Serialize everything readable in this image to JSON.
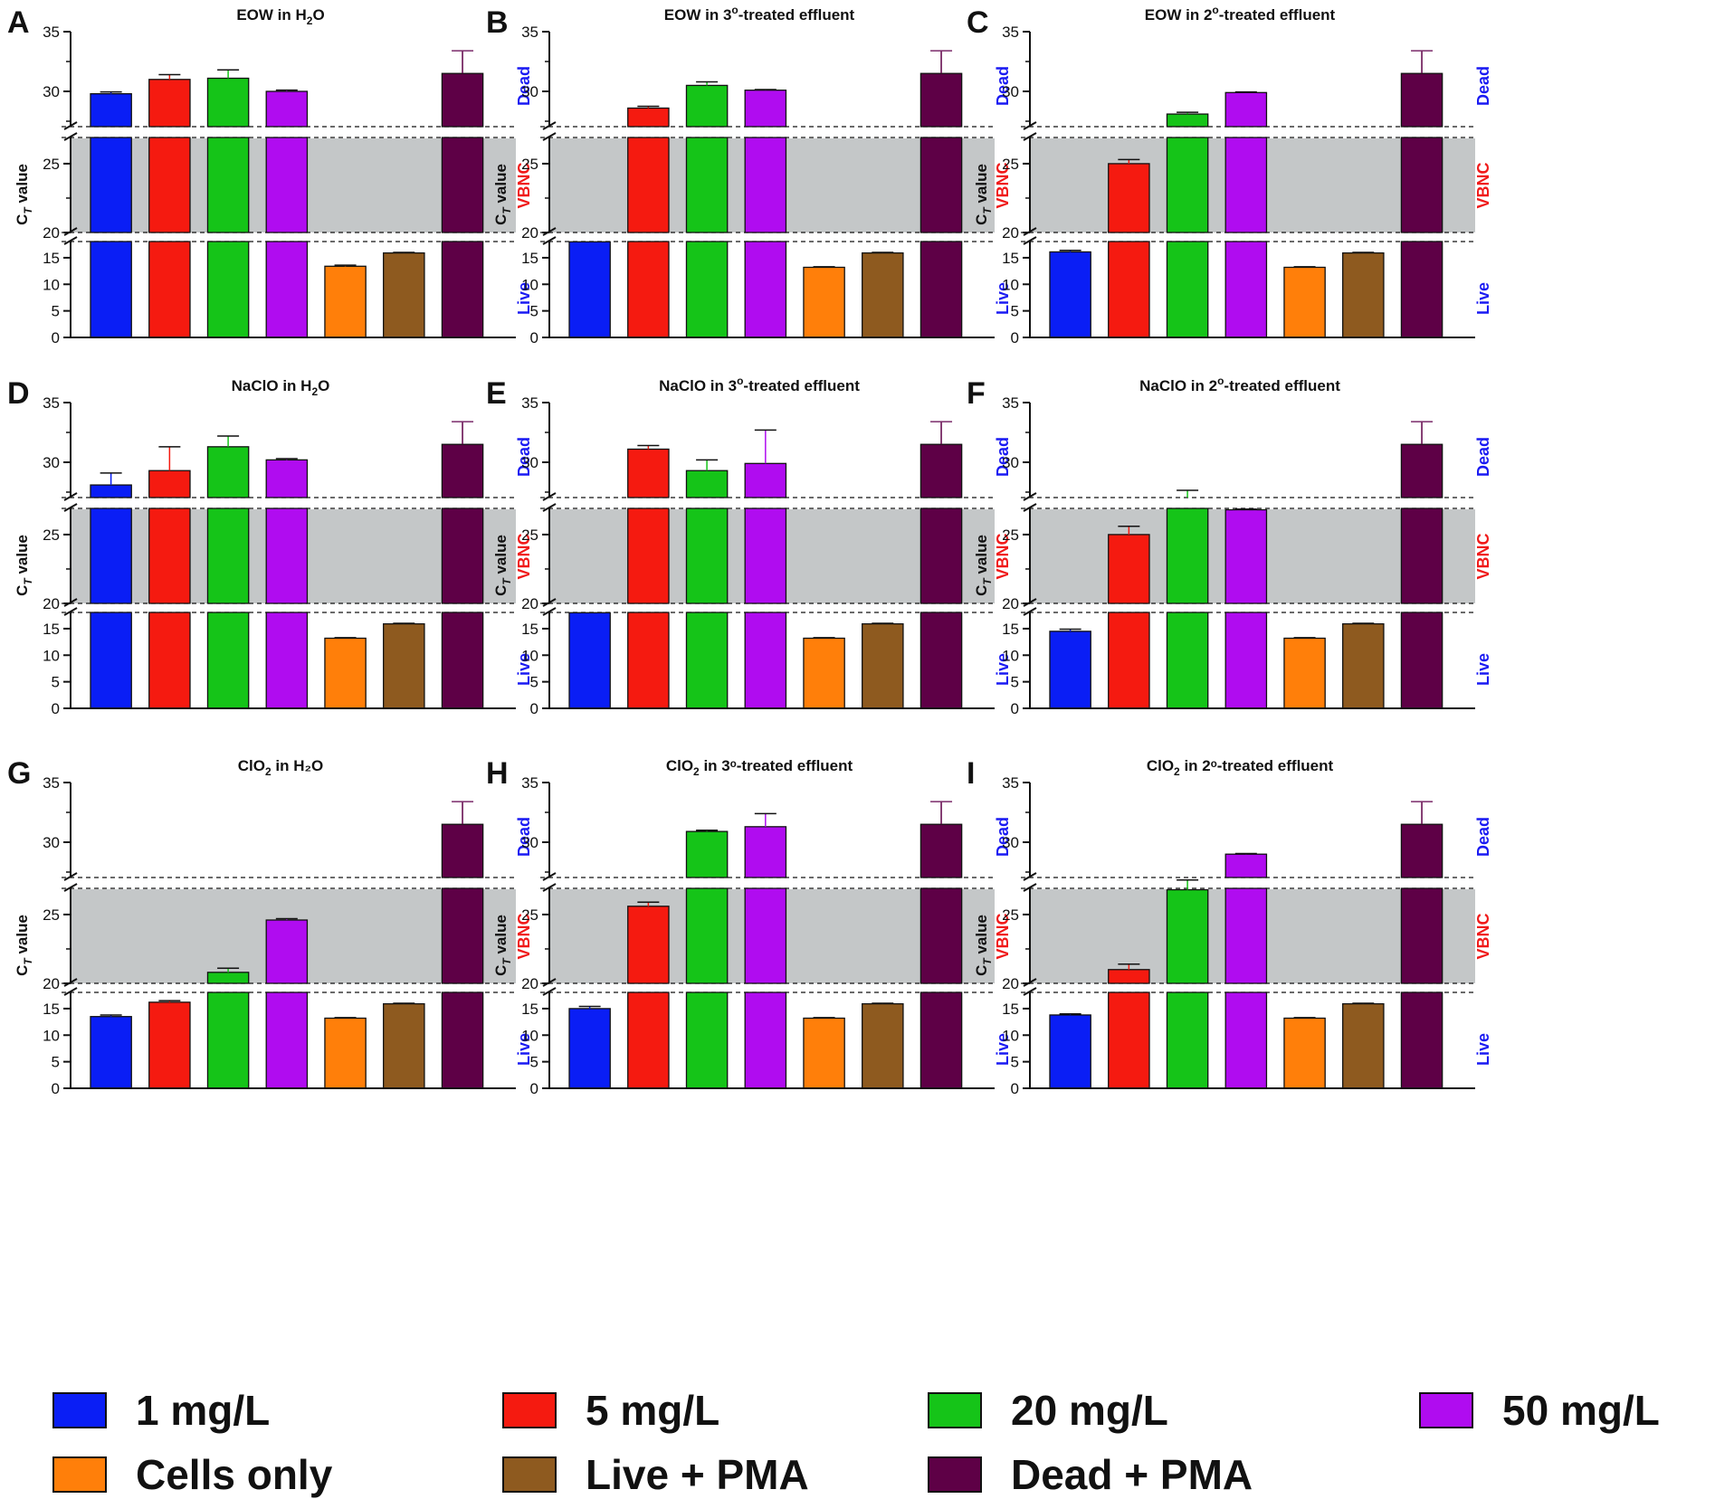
{
  "colors": {
    "1 mg/L": "#0a1ef5",
    "5 mg/L": "#f51a10",
    "20 mg/L": "#15c418",
    "50 mg/L": "#b00cf0",
    "Cells only": "#ff7f0a",
    "Live + PMA": "#8e5a1f",
    "Dead + PMA": "#5e0046",
    "band": "#c4c7c8",
    "dead_label": "#1a1af2",
    "vbnc_label": "#f01a1a",
    "live_label": "#1a1af2"
  },
  "legend": {
    "items": [
      {
        "label": "1 mg/L",
        "color": "#0a1ef5"
      },
      {
        "label": "5 mg/L",
        "color": "#f51a10"
      },
      {
        "label": "20 mg/L",
        "color": "#15c418"
      },
      {
        "label": "50 mg/L",
        "color": "#b00cf0"
      },
      {
        "label": "Cells only",
        "color": "#ff7f0a"
      },
      {
        "label": "Live + PMA",
        "color": "#8e5a1f"
      },
      {
        "label": "Dead + PMA",
        "color": "#5e0046"
      }
    ]
  },
  "chart_data": [
    {
      "panel": "A",
      "type": "bar",
      "title_prefix": "EOW in H",
      "title_sub": "2",
      "title_sup": "",
      "title_suffix": "O",
      "ylabel": "CT value",
      "ylim": [
        0,
        35
      ],
      "yticks": [
        0,
        5,
        10,
        15,
        20,
        25,
        30,
        35
      ],
      "zones": {
        "dead": "Dead",
        "vbnc": "VBNC",
        "live": "Live"
      },
      "categories": [
        "1 mg/L",
        "5 mg/L",
        "20 mg/L",
        "50 mg/L",
        "Cells only",
        "Live + PMA",
        "Dead + PMA"
      ],
      "values": [
        29.8,
        31.0,
        31.1,
        30.0,
        13.4,
        15.9,
        31.5
      ],
      "errors": [
        0.15,
        0.4,
        0.7,
        0.1,
        0.2,
        0.1,
        1.9
      ]
    },
    {
      "panel": "B",
      "type": "bar",
      "title_prefix": "EOW in 3",
      "title_sub": "",
      "title_sup": "o",
      "title_suffix": "-treated effluent",
      "ylabel": "CT value",
      "ylim": [
        0,
        35
      ],
      "yticks": [
        0,
        5,
        10,
        15,
        20,
        25,
        30,
        35
      ],
      "zones": {
        "dead": "Dead",
        "vbnc": "VBNC",
        "live": "Live"
      },
      "categories": [
        "1 mg/L",
        "5 mg/L",
        "20 mg/L",
        "50 mg/L",
        "Cells only",
        "Live + PMA",
        "Dead + PMA"
      ],
      "values": [
        18.0,
        28.6,
        30.5,
        30.1,
        13.2,
        15.9,
        31.5
      ],
      "errors": [
        0,
        0.15,
        0.3,
        0.05,
        0.1,
        0.1,
        1.9
      ]
    },
    {
      "panel": "C",
      "type": "bar",
      "title_prefix": "EOW in 2",
      "title_sub": "",
      "title_sup": "o",
      "title_suffix": "-treated effluent",
      "ylabel": "CT value",
      "ylim": [
        0,
        35
      ],
      "yticks": [
        0,
        5,
        10,
        15,
        20,
        25,
        30,
        35
      ],
      "zones": {
        "dead": "Dead",
        "vbnc": "VBNC",
        "live": "Live"
      },
      "categories": [
        "1 mg/L",
        "5 mg/L",
        "20 mg/L",
        "50 mg/L",
        "Cells only",
        "Live + PMA",
        "Dead + PMA"
      ],
      "values": [
        16.1,
        25.0,
        28.1,
        29.9,
        13.2,
        15.9,
        31.5
      ],
      "errors": [
        0.3,
        0.3,
        0.15,
        0.05,
        0.1,
        0.1,
        1.9
      ]
    },
    {
      "panel": "D",
      "type": "bar",
      "title_prefix": "NaClO in H",
      "title_sub": "2",
      "title_sup": "",
      "title_suffix": "O",
      "ylabel": "CT value",
      "ylim": [
        0,
        35
      ],
      "yticks": [
        0,
        5,
        10,
        15,
        20,
        25,
        30,
        35
      ],
      "zones": {
        "dead": "Dead",
        "vbnc": "VBNC",
        "live": "Live"
      },
      "categories": [
        "1 mg/L",
        "5 mg/L",
        "20 mg/L",
        "50 mg/L",
        "Cells only",
        "Live + PMA",
        "Dead + PMA"
      ],
      "values": [
        28.1,
        29.3,
        31.3,
        30.2,
        13.2,
        15.9,
        31.5
      ],
      "errors": [
        1.0,
        2.0,
        0.9,
        0.1,
        0.1,
        0.1,
        1.9
      ]
    },
    {
      "panel": "E",
      "type": "bar",
      "title_prefix": "NaClO in 3",
      "title_sub": "",
      "title_sup": "o",
      "title_suffix": "-treated effluent",
      "ylabel": "CT value",
      "ylim": [
        0,
        35
      ],
      "yticks": [
        0,
        5,
        10,
        15,
        20,
        25,
        30,
        35
      ],
      "zones": {
        "dead": "Dead",
        "vbnc": "VBNC",
        "live": "Live"
      },
      "categories": [
        "1 mg/L",
        "5 mg/L",
        "20 mg/L",
        "50 mg/L",
        "Cells only",
        "Live + PMA",
        "Dead + PMA"
      ],
      "values": [
        18.0,
        31.1,
        29.3,
        29.9,
        13.2,
        15.9,
        31.5
      ],
      "errors": [
        0,
        0.3,
        0.9,
        2.8,
        0.1,
        0.1,
        1.9
      ]
    },
    {
      "panel": "F",
      "type": "bar",
      "title_prefix": "NaClO in 2",
      "title_sub": "",
      "title_sup": "o",
      "title_suffix": "-treated effluent",
      "ylabel": "CT value",
      "ylim": [
        0,
        35
      ],
      "yticks": [
        0,
        5,
        10,
        15,
        20,
        25,
        30,
        35
      ],
      "zones": {
        "dead": "Dead",
        "vbnc": "VBNC",
        "live": "Live"
      },
      "categories": [
        "1 mg/L",
        "5 mg/L",
        "20 mg/L",
        "50 mg/L",
        "Cells only",
        "Live + PMA",
        "Dead + PMA"
      ],
      "values": [
        14.5,
        25.0,
        27.5,
        26.8,
        13.2,
        15.9,
        31.5
      ],
      "errors": [
        0.4,
        0.6,
        0.15,
        0.05,
        0.1,
        0.1,
        1.9
      ]
    },
    {
      "panel": "G",
      "type": "bar",
      "title_prefix": "ClO",
      "title_sub": "2",
      "title_sup": "",
      "title_suffix": " in H₂O",
      "ylabel": "CT value",
      "ylim": [
        0,
        35
      ],
      "yticks": [
        0,
        5,
        10,
        15,
        20,
        25,
        30,
        35
      ],
      "zones": {
        "dead": "Dead",
        "vbnc": "VBNC",
        "live": "Live"
      },
      "categories": [
        "1 mg/L",
        "5 mg/L",
        "20 mg/L",
        "50 mg/L",
        "Cells only",
        "Live + PMA",
        "Dead + PMA"
      ],
      "values": [
        13.5,
        16.2,
        20.8,
        24.6,
        13.2,
        15.9,
        31.5
      ],
      "errors": [
        0.3,
        0.3,
        0.3,
        0.1,
        0.1,
        0.1,
        1.9
      ]
    },
    {
      "panel": "H",
      "type": "bar",
      "title_prefix": "ClO",
      "title_sub": "2",
      "title_sup": "",
      "title_suffix": " in 3ᵒ-treated effluent",
      "ylabel": "CT value",
      "ylim": [
        0,
        35
      ],
      "yticks": [
        0,
        5,
        10,
        15,
        20,
        25,
        30,
        35
      ],
      "zones": {
        "dead": "Dead",
        "vbnc": "VBNC",
        "live": "Live"
      },
      "categories": [
        "1 mg/L",
        "5 mg/L",
        "20 mg/L",
        "50 mg/L",
        "Cells only",
        "Live + PMA",
        "Dead + PMA"
      ],
      "values": [
        15.0,
        25.6,
        30.9,
        31.3,
        13.2,
        15.9,
        31.5
      ],
      "errors": [
        0.4,
        0.3,
        0.1,
        1.1,
        0.1,
        0.1,
        1.9
      ]
    },
    {
      "panel": "I",
      "type": "bar",
      "title_prefix": "ClO",
      "title_sub": "2",
      "title_sup": "",
      "title_suffix": " in 2ᵒ-treated effluent",
      "ylabel": "CT value",
      "ylim": [
        0,
        35
      ],
      "yticks": [
        0,
        5,
        10,
        15,
        20,
        25,
        30,
        35
      ],
      "zones": {
        "dead": "Dead",
        "vbnc": "VBNC",
        "live": "Live"
      },
      "categories": [
        "1 mg/L",
        "5 mg/L",
        "20 mg/L",
        "50 mg/L",
        "Cells only",
        "Live + PMA",
        "Dead + PMA"
      ],
      "values": [
        13.8,
        21.0,
        26.8,
        29.0,
        13.2,
        15.9,
        31.5
      ],
      "errors": [
        0.2,
        0.4,
        0.5,
        0.05,
        0.1,
        0.1,
        1.9
      ]
    }
  ]
}
